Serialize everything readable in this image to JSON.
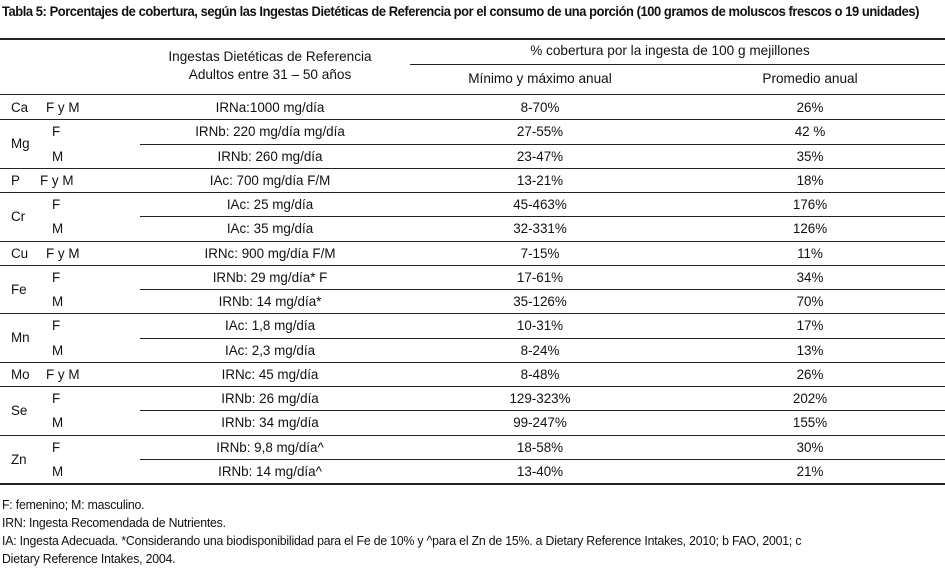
{
  "table": {
    "label": "Tabla 5:",
    "caption": "Porcentajes de cobertura, según las Ingestas Dietéticas de Referencia por el consumo de una porción (100 gramos de moluscos frescos o 19 unidades)",
    "header": {
      "ref_line1": "Ingestas Dietéticas de Referencia",
      "ref_line2": "Adultos entre 31 – 50 años",
      "coverage": "% cobertura por la ingesta de 100 g mejillones",
      "min_max": "Mínimo y máximo anual",
      "avg": "Promedio anual"
    },
    "rows": [
      {
        "element": "Ca",
        "sex": "F y M",
        "ref": "IRNa:1000 mg/día",
        "range": "8-70%",
        "avg": "26%"
      },
      {
        "element": "Mg",
        "sex": "F",
        "ref": "IRNb: 220 mg/día  mg/día",
        "range": "27-55%",
        "avg": "42 %"
      },
      {
        "element": "",
        "sex": "M",
        "ref": "IRNb: 260 mg/día",
        "range": "23-47%",
        "avg": "35%"
      },
      {
        "element": "P",
        "sex": "F y M",
        "ref": "IAc: 700 mg/día  F/M",
        "range": "13-21%",
        "avg": "18%"
      },
      {
        "element": "Cr",
        "sex": "F",
        "ref": "IAc: 25 mg/día",
        "range": "45-463%",
        "avg": "176%"
      },
      {
        "element": "",
        "sex": "M",
        "ref": "IAc: 35 mg/día",
        "range": "32-331%",
        "avg": "126%"
      },
      {
        "element": "Cu",
        "sex": "F y M",
        "ref": "IRNc: 900 mg/día F/M",
        "range": "7-15%",
        "avg": "11%"
      },
      {
        "element": "Fe",
        "sex": "F",
        "ref": "IRNb: 29 mg/día* F",
        "range": "17-61%",
        "avg": "34%"
      },
      {
        "element": "",
        "sex": "M",
        "ref": "IRNb: 14 mg/día*",
        "range": "35-126%",
        "avg": "70%"
      },
      {
        "element": "Mn",
        "sex": "F",
        "ref": "IAc: 1,8 mg/día",
        "range": "10-31%",
        "avg": "17%"
      },
      {
        "element": "",
        "sex": "M",
        "ref": "IAc: 2,3 mg/día",
        "range": "8-24%",
        "avg": "13%"
      },
      {
        "element": "Mo",
        "sex": "F y M",
        "ref": "IRNc: 45 mg/día",
        "range": "8-48%",
        "avg": "26%"
      },
      {
        "element": "Se",
        "sex": "F",
        "ref": "IRNb:  26 mg/día",
        "range": "129-323%",
        "avg": "202%"
      },
      {
        "element": "",
        "sex": "M",
        "ref": "IRNb:  34 mg/día",
        "range": "99-247%",
        "avg": "155%"
      },
      {
        "element": "Zn",
        "sex": "F",
        "ref": "IRNb: 9,8 mg/día^",
        "range": "18-58%",
        "avg": "30%"
      },
      {
        "element": "",
        "sex": "M",
        "ref": "IRNb: 14 mg/día^",
        "range": "13-40%",
        "avg": "21%"
      }
    ],
    "notes": [
      "F: femenino; M: masculino.",
      "IRN: Ingesta Recomendada de Nutrientes.",
      "IA: Ingesta Adecuada. *Considerando una biodisponibilidad para el Fe de 10% y ^para el Zn de 15%. a Dietary Reference Intakes, 2010; b FAO, 2001; c",
      "Dietary Reference Intakes, 2004."
    ]
  }
}
